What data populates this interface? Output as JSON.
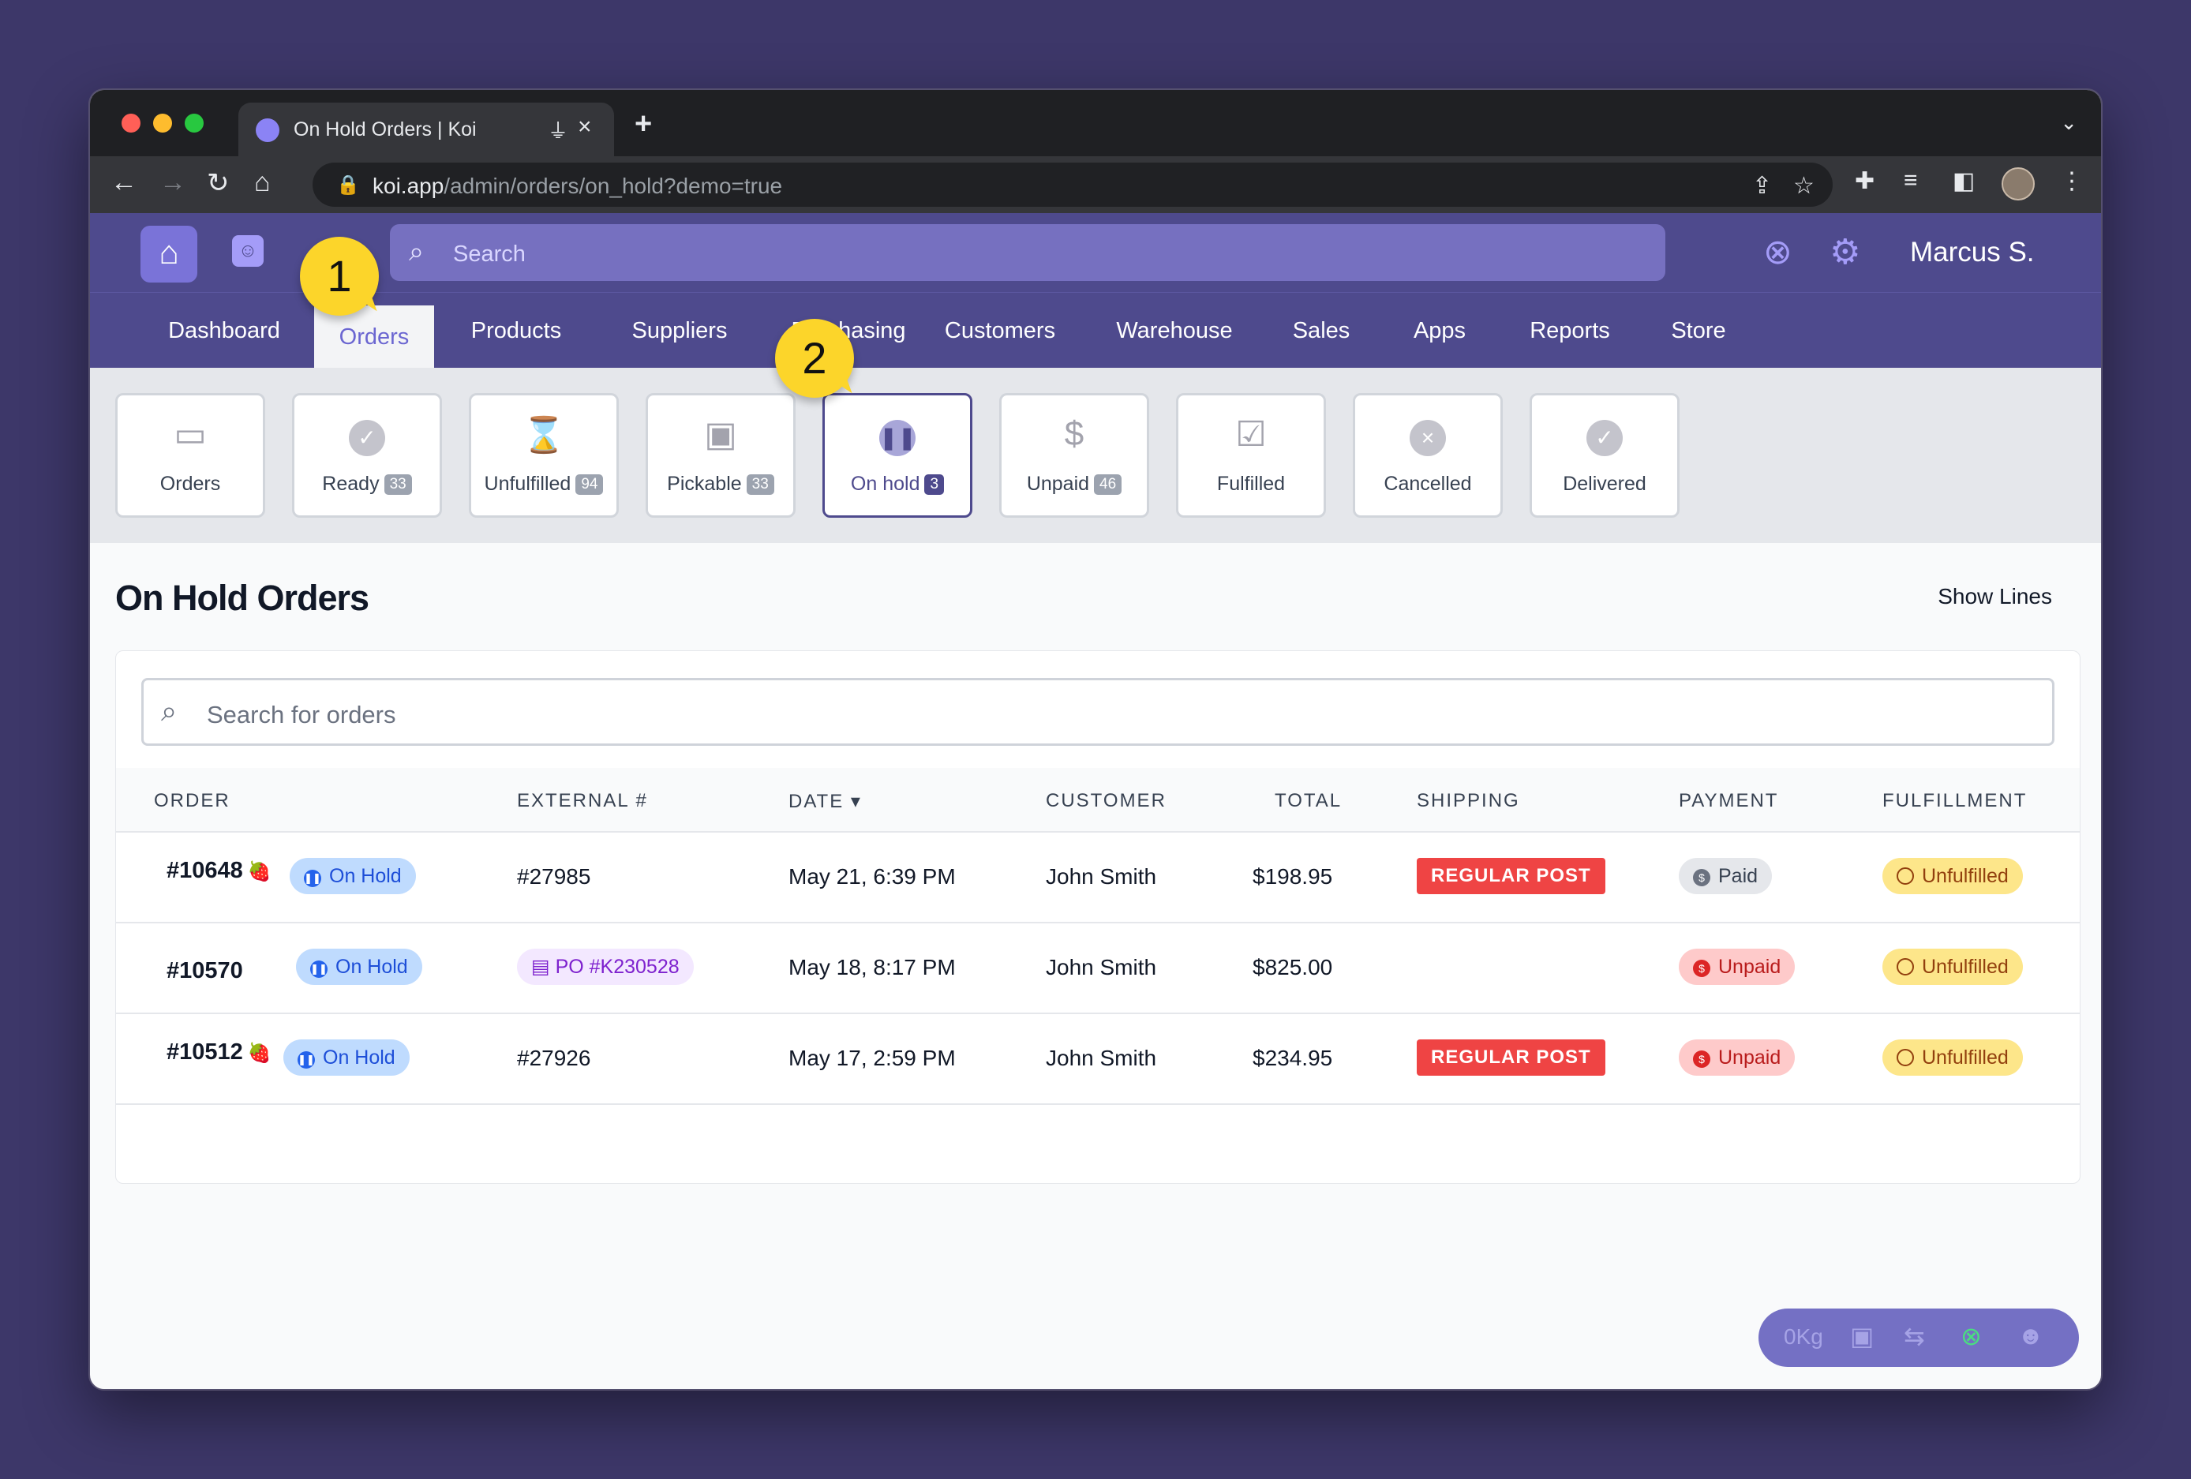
{
  "browser": {
    "tab_title": "On Hold Orders | Koi",
    "url_domain": "koi.app",
    "url_path": "/admin/orders/on_hold?demo=true"
  },
  "header": {
    "search_placeholder": "Search",
    "user_name": "Marcus S."
  },
  "nav": {
    "items": [
      "Dashboard",
      "Orders",
      "Products",
      "Suppliers",
      "Purchasing",
      "Customers",
      "Warehouse",
      "Sales",
      "Apps",
      "Reports",
      "Store"
    ],
    "active": "Orders"
  },
  "subnav": {
    "cards": [
      {
        "label": "Orders",
        "count": "",
        "icon": "inbox-icon"
      },
      {
        "label": "Ready",
        "count": "33",
        "icon": "check-circle-icon"
      },
      {
        "label": "Unfulfilled",
        "count": "94",
        "icon": "hourglass-icon"
      },
      {
        "label": "Pickable",
        "count": "33",
        "icon": "box-hand-icon"
      },
      {
        "label": "On hold",
        "count": "3",
        "icon": "pause-circle-icon"
      },
      {
        "label": "Unpaid",
        "count": "46",
        "icon": "dollar-hand-icon"
      },
      {
        "label": "Fulfilled",
        "count": "",
        "icon": "box-check-icon"
      },
      {
        "label": "Cancelled",
        "count": "",
        "icon": "x-circle-icon"
      },
      {
        "label": "Delivered",
        "count": "",
        "icon": "check-circle-icon"
      }
    ],
    "active": "On hold"
  },
  "page": {
    "title": "On Hold Orders",
    "show_lines": "Show Lines",
    "search_placeholder": "Search for orders"
  },
  "table": {
    "columns": [
      "ORDER",
      "EXTERNAL #",
      "DATE",
      "CUSTOMER",
      "TOTAL",
      "SHIPPING",
      "PAYMENT",
      "FULFILLMENT"
    ],
    "rows": [
      {
        "order": "#10648",
        "flag": "🍓",
        "status": "On Hold",
        "external": "#27985",
        "date": "May 21, 6:39 PM",
        "customer": "John Smith",
        "total": "$198.95",
        "shipping": "REGULAR POST",
        "payment": "Paid",
        "fulfillment": "Unfulfilled"
      },
      {
        "order": "#10570",
        "flag": "",
        "status": "On Hold",
        "external": "PO #K230528",
        "date": "May 18, 8:17 PM",
        "customer": "John Smith",
        "total": "$825.00",
        "shipping": "",
        "payment": "Unpaid",
        "fulfillment": "Unfulfilled"
      },
      {
        "order": "#10512",
        "flag": "🍓",
        "status": "On Hold",
        "external": "#27926",
        "date": "May 17, 2:59 PM",
        "customer": "John Smith",
        "total": "$234.95",
        "shipping": "REGULAR POST",
        "payment": "Unpaid",
        "fulfillment": "Unfulfilled"
      }
    ]
  },
  "callouts": [
    "1",
    "2"
  ],
  "status_bar": {
    "weight": "0Kg"
  }
}
